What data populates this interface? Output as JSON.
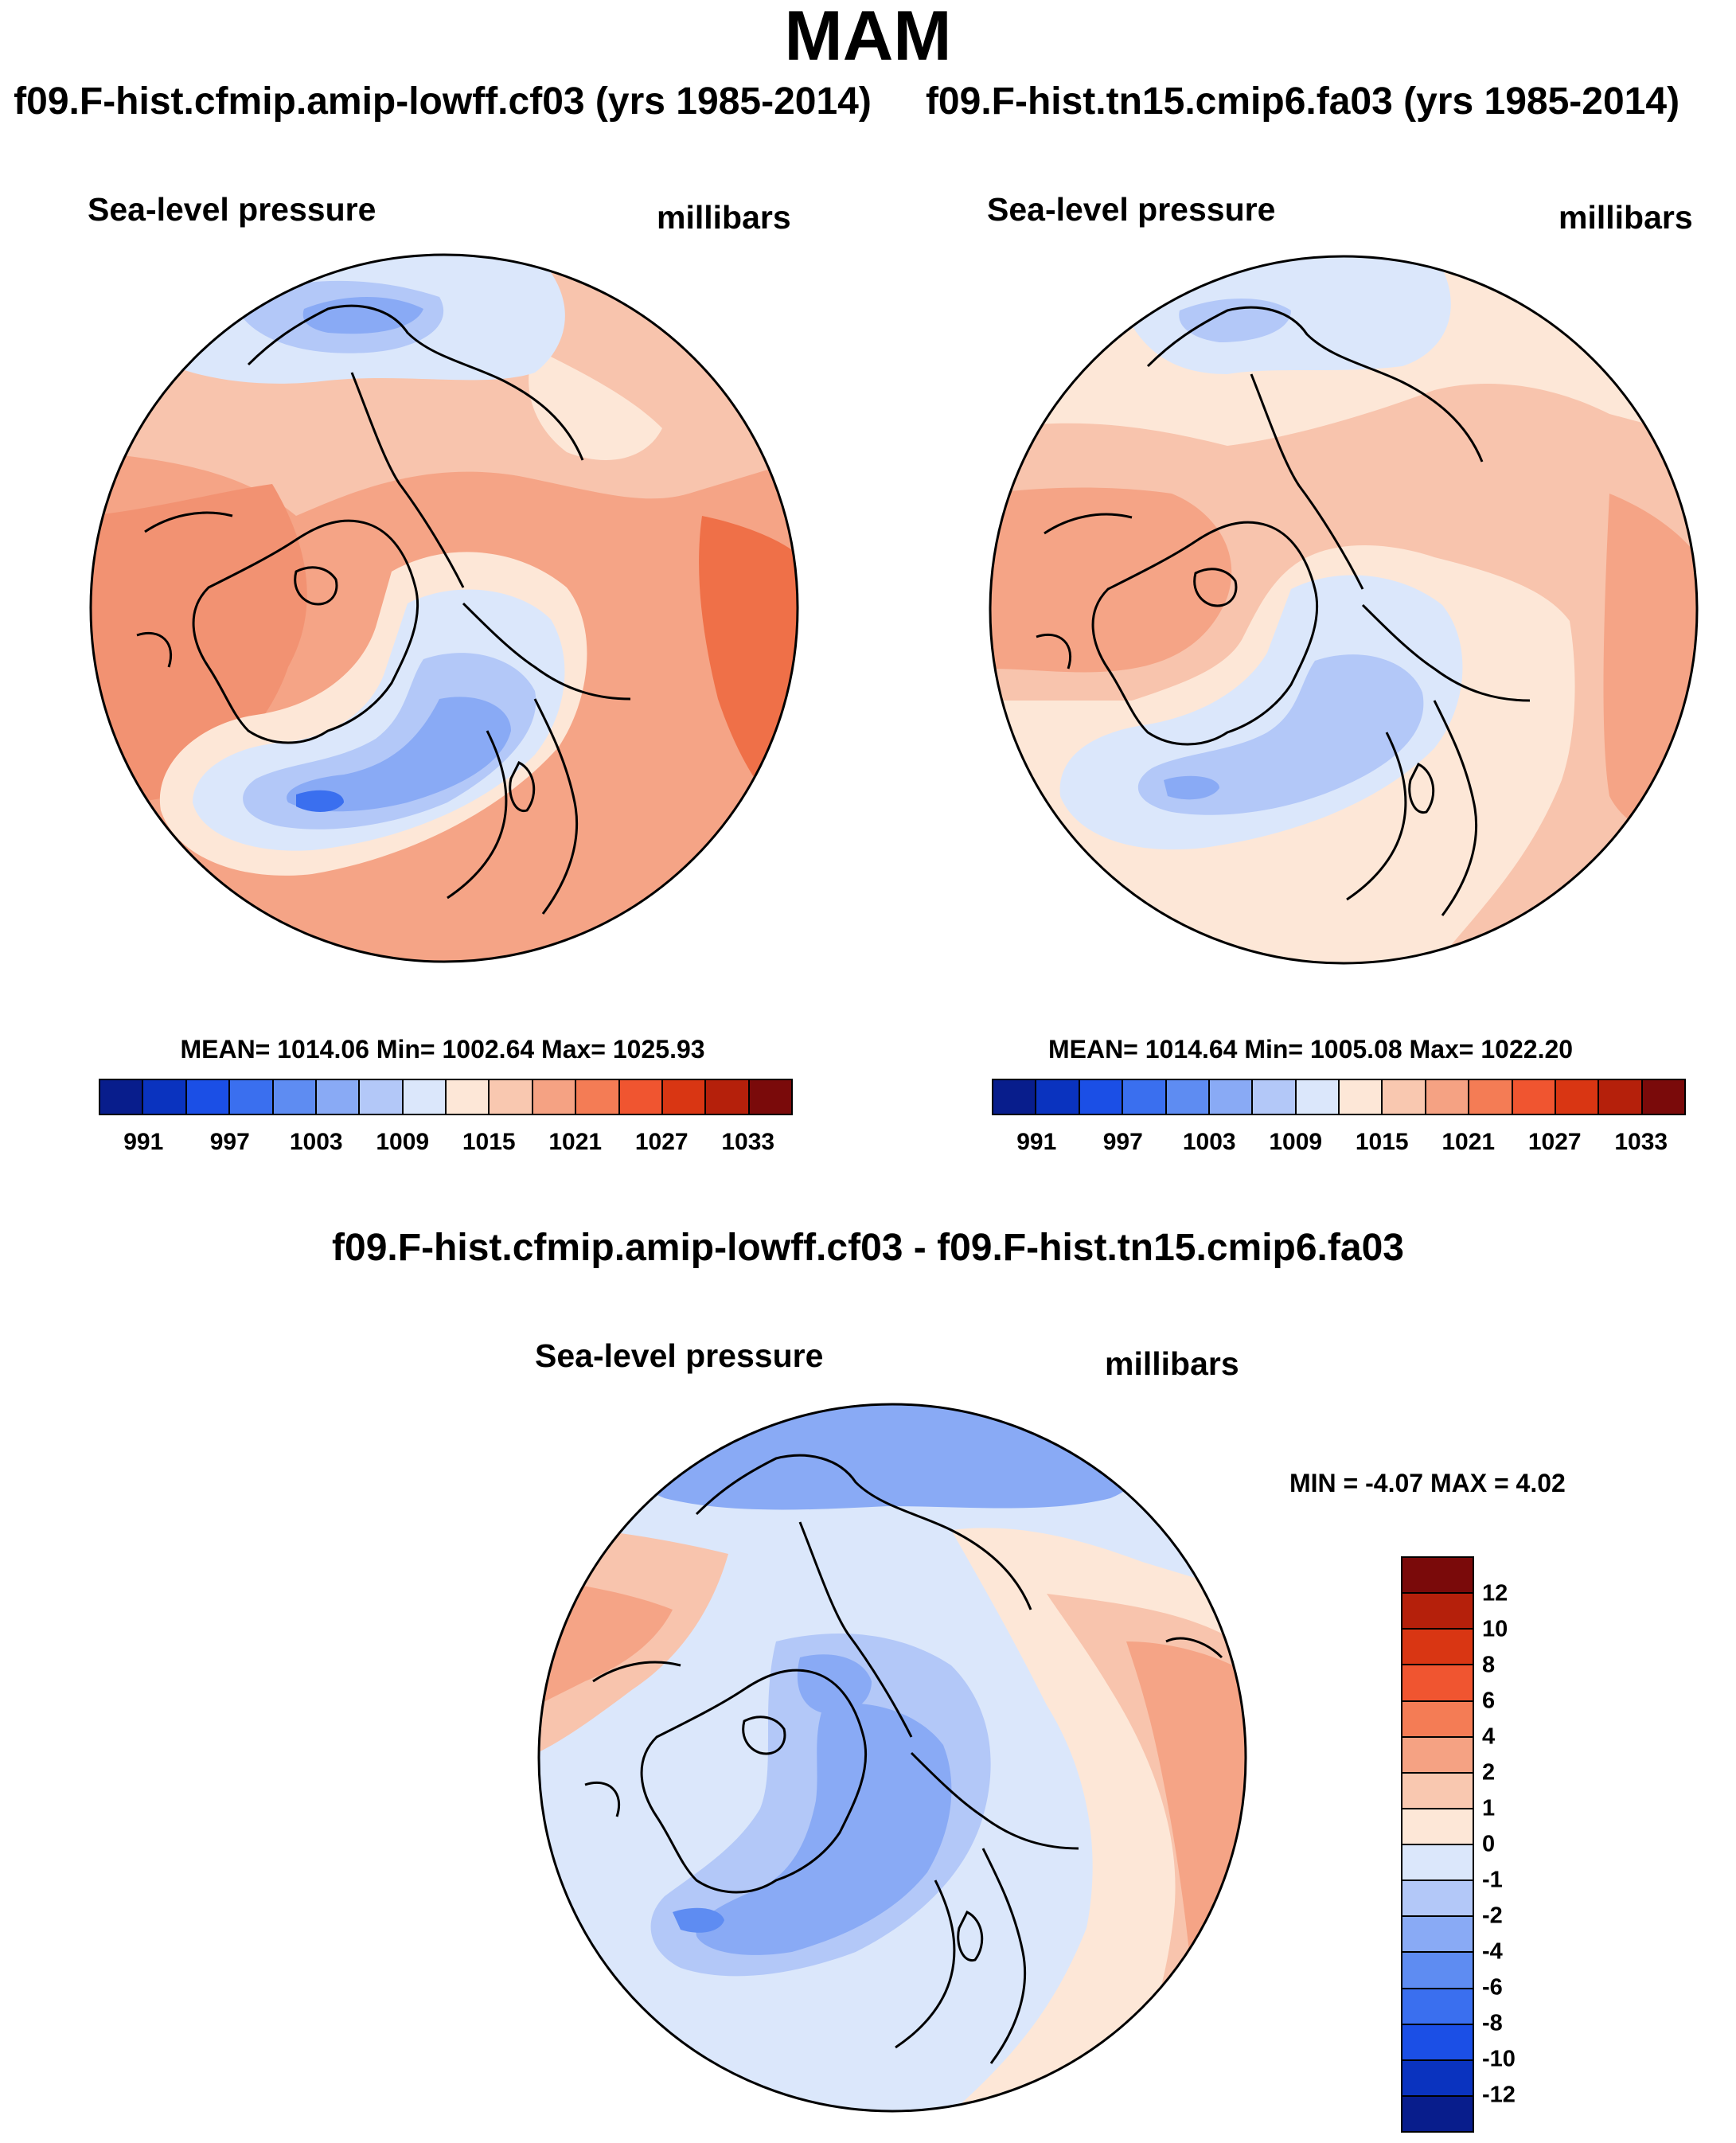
{
  "season": "MAM",
  "panels": {
    "left": {
      "title": "f09.F-hist.cfmip.amip-lowff.cf03 (yrs 1985-2014)",
      "variable": "Sea-level pressure",
      "units": "millibars",
      "stats": "MEAN= 1014.06  Min= 1002.64  Max= 1025.93"
    },
    "right": {
      "title": "f09.F-hist.tn15.cmip6.fa03 (yrs 1985-2014)",
      "variable": "Sea-level pressure",
      "units": "millibars",
      "stats": "MEAN= 1014.64  Min= 1005.08  Max= 1022.20"
    },
    "diff": {
      "title": "f09.F-hist.cfmip.amip-lowff.cf03 - f09.F-hist.tn15.cmip6.fa03",
      "variable": "Sea-level pressure",
      "units": "millibars",
      "stats": "MIN =  -4.07 MAX =   4.02"
    }
  },
  "chart_data": [
    {
      "type": "heatmap",
      "title": "f09.F-hist.cfmip.amip-lowff.cf03 (yrs 1985-2014)",
      "variable": "Sea-level pressure",
      "units": "millibars",
      "projection": "north-polar-stereographic",
      "mean": 1014.06,
      "min": 1002.64,
      "max": 1025.93,
      "colorbar_ticks": [
        "991",
        "997",
        "1003",
        "1009",
        "1015",
        "1021",
        "1027",
        "1033"
      ]
    },
    {
      "type": "heatmap",
      "title": "f09.F-hist.tn15.cmip6.fa03 (yrs 1985-2014)",
      "variable": "Sea-level pressure",
      "units": "millibars",
      "projection": "north-polar-stereographic",
      "mean": 1014.64,
      "min": 1005.08,
      "max": 1022.2,
      "colorbar_ticks": [
        "991",
        "997",
        "1003",
        "1009",
        "1015",
        "1021",
        "1027",
        "1033"
      ]
    },
    {
      "type": "heatmap",
      "title": "f09.F-hist.cfmip.amip-lowff.cf03 - f09.F-hist.tn15.cmip6.fa03",
      "variable": "Sea-level pressure",
      "units": "millibars",
      "projection": "north-polar-stereographic",
      "min": -4.07,
      "max": 4.02,
      "colorbar_ticks": [
        "12",
        "10",
        "8",
        "6",
        "4",
        "2",
        "1",
        "0",
        "-1",
        "-2",
        "-4",
        "-6",
        "-8",
        "-10",
        "-12"
      ]
    }
  ],
  "colors": {
    "abs_scale": [
      "#081d8c",
      "#0a33bf",
      "#1b4fe6",
      "#3a6fef",
      "#5e8cf2",
      "#89aaf5",
      "#b3c8f8",
      "#dbe7fb",
      "#fde7d7",
      "#f9c8b0",
      "#f5a283",
      "#f47c55",
      "#f05530",
      "#d93613",
      "#b5200b",
      "#7a0a0a"
    ],
    "diff_scale": [
      "#7a0a0a",
      "#b5200b",
      "#d93613",
      "#f05530",
      "#f47c55",
      "#f5a283",
      "#f9c8b0",
      "#fde7d7",
      "#dbe7fb",
      "#b3c8f8",
      "#89aaf5",
      "#5e8cf2",
      "#3a6fef",
      "#1b4fe6",
      "#0a33bf",
      "#081d8c"
    ]
  }
}
